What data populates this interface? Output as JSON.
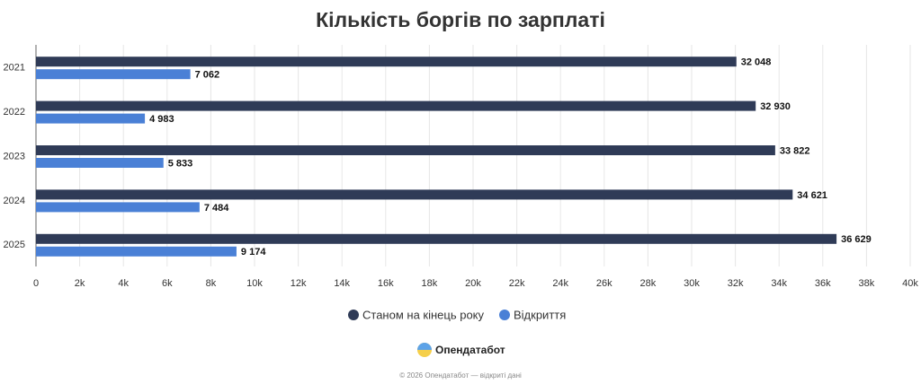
{
  "chart_data": {
    "type": "bar",
    "orientation": "horizontal",
    "title": "Кількість боргів по зарплаті",
    "categories": [
      "2021",
      "2022",
      "2023",
      "2024",
      "2025"
    ],
    "series": [
      {
        "name": "Станом на кінець року",
        "color": "#2f3b57",
        "values": [
          32048,
          32930,
          33822,
          34621,
          36629
        ],
        "value_labels": [
          "32 048",
          "32 930",
          "33 822",
          "34 621",
          "36 629"
        ]
      },
      {
        "name": "Відкриття",
        "color": "#4a80d6",
        "values": [
          7062,
          4983,
          5833,
          7484,
          9174
        ],
        "value_labels": [
          "7 062",
          "4 983",
          "5 833",
          "7 484",
          "9 174"
        ]
      }
    ],
    "xlim": [
      0,
      40000
    ],
    "xticks": [
      0,
      {
        "value": 2000,
        "label": "2k"
      },
      {
        "value": 4000,
        "label": "4k"
      },
      {
        "value": 6000,
        "label": "6k"
      },
      {
        "value": 8000,
        "label": "8k"
      },
      {
        "value": 10000,
        "label": "10k"
      },
      {
        "value": 12000,
        "label": "12k"
      },
      {
        "value": 14000,
        "label": "14k"
      },
      {
        "value": 16000,
        "label": "16k"
      },
      {
        "value": 18000,
        "label": "18k"
      },
      {
        "value": 20000,
        "label": "20k"
      },
      {
        "value": 22000,
        "label": "22k"
      },
      {
        "value": 24000,
        "label": "24k"
      },
      {
        "value": 26000,
        "label": "26k"
      },
      {
        "value": 28000,
        "label": "28k"
      },
      {
        "value": 30000,
        "label": "30k"
      },
      {
        "value": 32000,
        "label": "32k"
      },
      {
        "value": 34000,
        "label": "34k"
      },
      {
        "value": 36000,
        "label": "36k"
      },
      {
        "value": 38000,
        "label": "38k"
      },
      {
        "value": 40000,
        "label": "40k"
      }
    ],
    "grid": true,
    "legend": "bottom"
  },
  "brand": "Опендатабот",
  "footer": "© 2026 Опендатабот — відкриті дані"
}
